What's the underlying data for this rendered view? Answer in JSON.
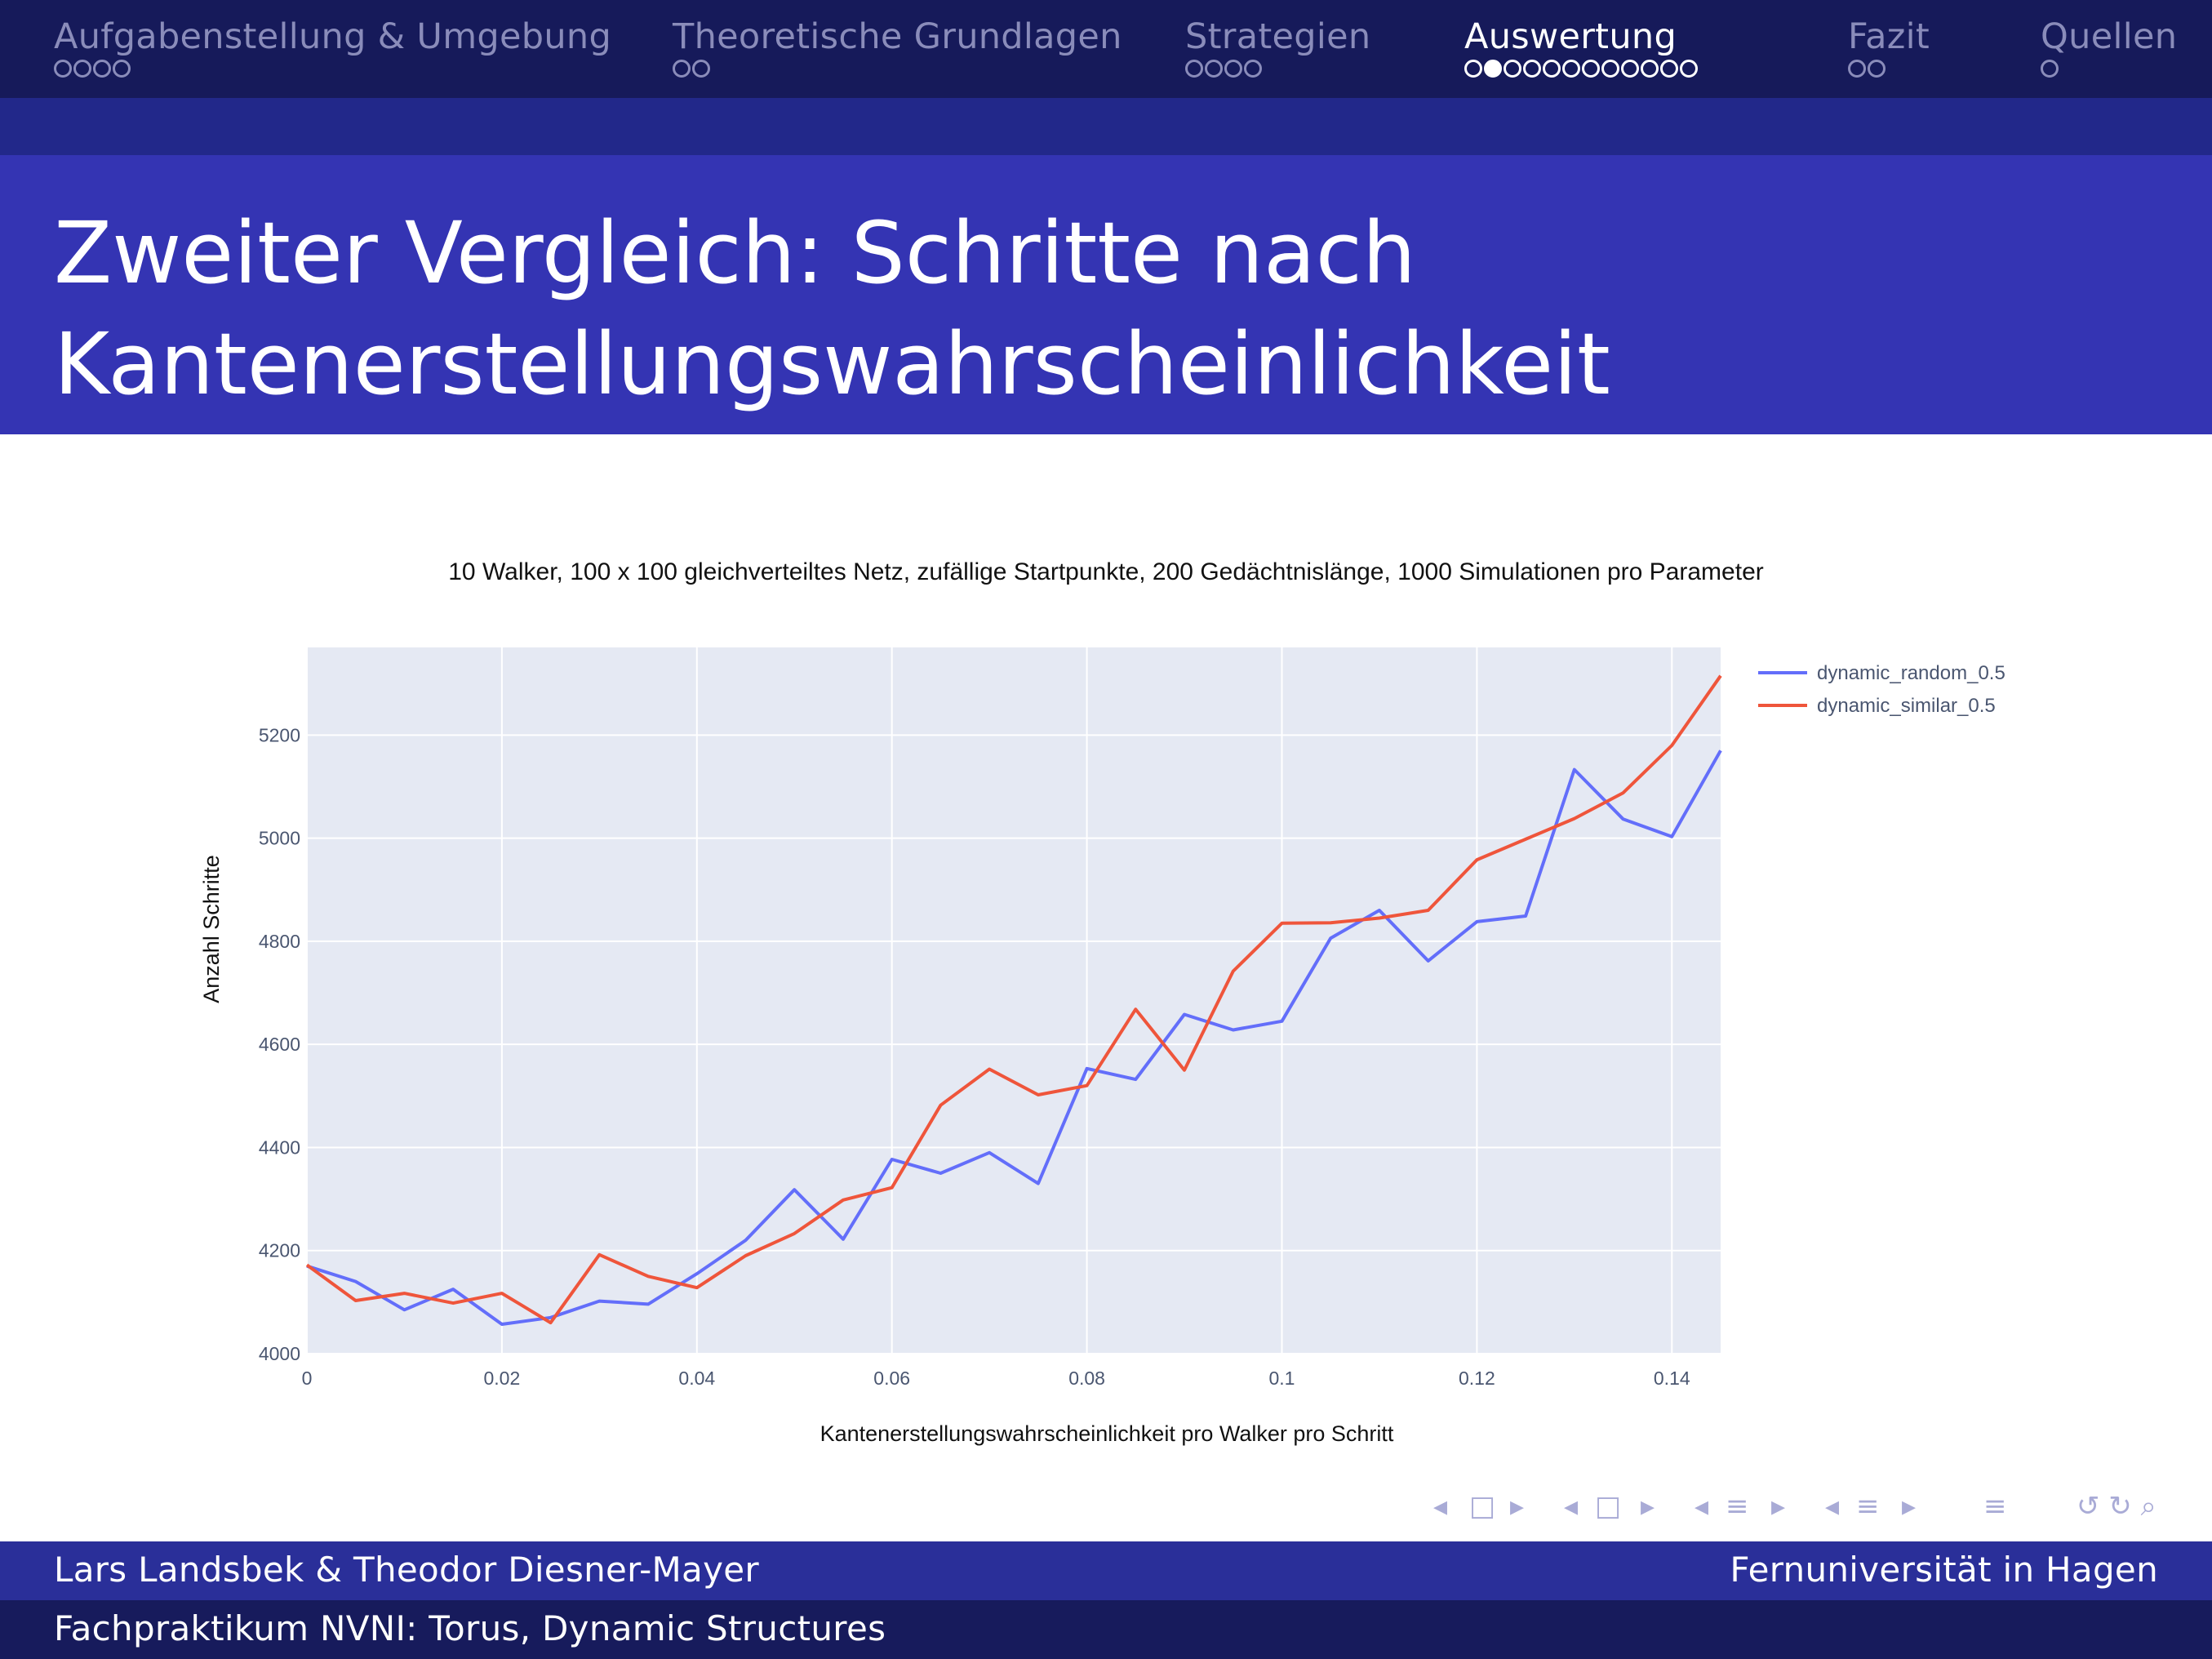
{
  "topnav": {
    "sections": [
      {
        "label": "Aufgabenstellung & Umgebung",
        "dots": 4,
        "filled": -1,
        "active": false
      },
      {
        "label": "Theoretische Grundlagen",
        "dots": 2,
        "filled": -1,
        "active": false
      },
      {
        "label": "Strategien",
        "dots": 4,
        "filled": -1,
        "active": false
      },
      {
        "label": "Auswertung",
        "dots": 12,
        "filled": 1,
        "active": true
      },
      {
        "label": "Fazit",
        "dots": 2,
        "filled": -1,
        "active": false
      },
      {
        "label": "Quellen",
        "dots": 1,
        "filled": -1,
        "active": false
      }
    ]
  },
  "slide": {
    "title_line1": "Zweiter Vergleich: Schritte nach",
    "title_line2": "Kantenerstellungswahrscheinlichkeit"
  },
  "colors": {
    "nav_bg": "#161a5a",
    "title_bg": "#3434b3",
    "plot_bg": "#e5e9f3",
    "series_random": "#636efa",
    "series_similar": "#ef553b"
  },
  "chart_data": {
    "type": "line",
    "title": "10 Walker, 100 x 100 gleichverteiltes Netz, zufällige Startpunkte, 200 Gedächtnislänge, 1000 Simulationen pro Parameter",
    "xlabel": "Kantenerstellungswahrscheinlichkeit pro Walker pro Schritt",
    "ylabel": "Anzahl Schritte",
    "xlim": [
      0,
      0.145
    ],
    "ylim": [
      4000,
      5370
    ],
    "x_ticks": [
      "0",
      "0.02",
      "0.04",
      "0.06",
      "0.08",
      "0.1",
      "0.12",
      "0.14"
    ],
    "y_ticks": [
      "4000",
      "4200",
      "4400",
      "4600",
      "4800",
      "5000",
      "5200"
    ],
    "legend_position": "top-right",
    "grid": true,
    "x": [
      0,
      0.005,
      0.01,
      0.015,
      0.02,
      0.025,
      0.03,
      0.035,
      0.04,
      0.045,
      0.05,
      0.055,
      0.06,
      0.065,
      0.07,
      0.075,
      0.08,
      0.085,
      0.09,
      0.095,
      0.1,
      0.105,
      0.11,
      0.115,
      0.12,
      0.125,
      0.13,
      0.135,
      0.14,
      0.145
    ],
    "series": [
      {
        "name": "dynamic_random_0.5",
        "color": "#636efa",
        "values": [
          4170,
          4140,
          4085,
          4125,
          4057,
          4070,
          4102,
          4096,
          4155,
          4220,
          4318,
          4222,
          4377,
          4350,
          4390,
          4330,
          4553,
          4532,
          4658,
          4628,
          4645,
          4806,
          4860,
          4762,
          4838,
          4849,
          5133,
          5037,
          5003,
          5170
        ]
      },
      {
        "name": "dynamic_similar_0.5",
        "color": "#ef553b",
        "values": [
          4172,
          4103,
          4117,
          4098,
          4117,
          4060,
          4192,
          4150,
          4128,
          4190,
          4233,
          4298,
          4322,
          4482,
          4552,
          4502,
          4520,
          4668,
          4550,
          4742,
          4835,
          4836,
          4845,
          4860,
          4958,
          4998,
          5038,
          5088,
          5180,
          5315
        ]
      }
    ]
  },
  "beamer_nav": {
    "left_arrow": "◂",
    "right_arrow": "▸",
    "frame_icon": "□",
    "list_icon": "≡",
    "search_undo": "↺ ↻ ⌕"
  },
  "footer": {
    "authors": "Lars Landsbek & Theodor Diesner-Mayer",
    "institution": "Fernuniversität in Hagen",
    "course": "Fachpraktikum NVNI: Torus, Dynamic Structures"
  }
}
